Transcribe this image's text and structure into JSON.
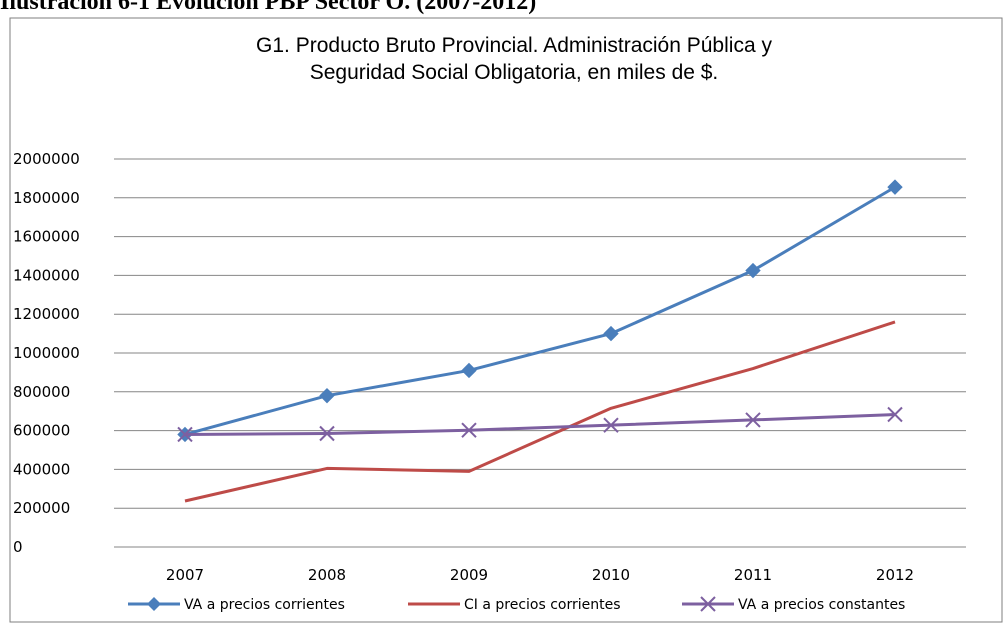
{
  "caption": "Ilustración 6-1 Evolución PBP Sector O. (2007-2012)",
  "chart_data": {
    "type": "line",
    "title": [
      "G1. Producto Bruto Provincial. Administración Pública y",
      "Seguridad Social Obligatoria, en miles de $."
    ],
    "xlabel": "",
    "ylabel": "",
    "categories": [
      "2007",
      "2008",
      "2009",
      "2010",
      "2011",
      "2012"
    ],
    "ylim": [
      0,
      2000000
    ],
    "yticks": [
      0,
      200000,
      400000,
      600000,
      800000,
      1000000,
      1200000,
      1400000,
      1600000,
      1800000,
      2000000
    ],
    "grid": true,
    "legend_position": "bottom",
    "series": [
      {
        "name": "VA a precios corrientes",
        "color": "#4a7ebb",
        "marker": "diamond",
        "values": [
          580000,
          780000,
          910000,
          1100000,
          1425000,
          1855000
        ]
      },
      {
        "name": "CI a precios corrientes",
        "color": "#be4b48",
        "marker": "none",
        "values": [
          237000,
          405000,
          390000,
          715000,
          920000,
          1160000
        ]
      },
      {
        "name": "VA a precios constantes",
        "color": "#7d60a0",
        "marker": "x",
        "values": [
          580000,
          585000,
          602000,
          628000,
          655000,
          683000
        ]
      }
    ]
  }
}
